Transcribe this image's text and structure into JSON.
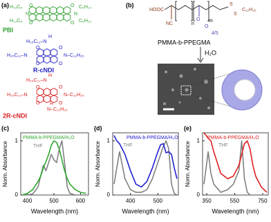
{
  "figure": {
    "a": {
      "label": "(a)",
      "pbi": {
        "name": "PBI",
        "texts": [
          "H₁₃C₆",
          "H₁₃C₆",
          "C₆H₁₃",
          "C₆H₁₃"
        ],
        "atoms": [
          "O",
          "N",
          "O",
          "O",
          "N",
          "O"
        ]
      },
      "rcndi": {
        "name": "R-cNDI",
        "texts": [
          "H",
          "H₂₅C₁₂–N",
          "H₂₅C₁₂–N",
          "N–C₁₂H₂₅"
        ],
        "atoms": [
          "O",
          "O",
          "O",
          "O"
        ]
      },
      "r2cndi": {
        "name": "2R-cNDI",
        "texts": [
          "H",
          "H₂₅C₁₂–N",
          "H₂₅C₁₂–N",
          "N–C₁₂H₂₅",
          "N–C₁₂H₂₅",
          "H"
        ],
        "atoms": [
          "O",
          "O",
          "O",
          "O"
        ]
      }
    },
    "b": {
      "label": "(b)",
      "texts": [
        "HOOC",
        "NC",
        "n",
        "O",
        "O",
        "m",
        "S",
        "S",
        "C₁₂H₂₅",
        "4/5"
      ],
      "polymer": "PMMA-b-PPEGMA",
      "solvent": "H₂O"
    }
  },
  "chart_data": [
    {
      "type": "line",
      "panel_label": "(c)",
      "xlabel": "Wavelength (nm)",
      "ylabel": "Norm. Absorbance",
      "x": [
        380,
        400,
        420,
        440,
        450,
        460,
        470,
        480,
        490,
        500,
        510,
        520,
        530,
        540,
        550,
        560,
        580,
        600,
        620
      ],
      "series": [
        {
          "name": "PMMA-b-PPEGMA/H₂O",
          "color": "#2fa82f",
          "values": [
            0,
            0.03,
            0.1,
            0.25,
            0.35,
            0.5,
            0.62,
            0.75,
            0.92,
            1.0,
            0.97,
            0.85,
            0.65,
            0.45,
            0.3,
            0.2,
            0.1,
            0.05,
            0.03
          ]
        },
        {
          "name": "THF",
          "color": "#808080",
          "values": [
            0,
            0,
            0.02,
            0.15,
            0.35,
            0.55,
            0.45,
            0.6,
            0.75,
            0.65,
            0.6,
            0.85,
            1.0,
            0.6,
            0.15,
            0.03,
            0,
            0,
            0
          ]
        }
      ],
      "xlim": [
        375,
        630
      ],
      "ylim": [
        0,
        1.15
      ],
      "xticks": [
        400,
        500,
        600
      ],
      "yticks": [
        0,
        1
      ]
    },
    {
      "type": "line",
      "panel_label": "(d)",
      "xlabel": "Wavelength (nm)",
      "ylabel": "Norm. Absorbance",
      "x": [
        340,
        350,
        360,
        370,
        380,
        400,
        420,
        440,
        460,
        480,
        500,
        510,
        520,
        530,
        540,
        550,
        560,
        570
      ],
      "series": [
        {
          "name": "PMMA-b-PPEGMA/H₂O",
          "color": "#2020d0",
          "values": [
            1.1,
            1.0,
            0.95,
            0.85,
            0.75,
            0.45,
            0.2,
            0.15,
            0.25,
            0.5,
            0.8,
            0.93,
            0.95,
            0.78,
            0.8,
            0.75,
            0.5,
            0.3
          ]
        },
        {
          "name": "THF",
          "color": "#808080",
          "values": [
            0.2,
            0.5,
            0.8,
            0.55,
            0.3,
            0.1,
            0.05,
            0.05,
            0.1,
            0.3,
            0.6,
            0.75,
            0.9,
            1.0,
            0.85,
            0.2,
            0.03,
            0
          ]
        }
      ],
      "xlim": [
        335,
        575
      ],
      "ylim": [
        0,
        1.15
      ],
      "xticks": [
        400,
        500
      ],
      "yticks": [
        0,
        1
      ]
    },
    {
      "type": "line",
      "panel_label": "(e)",
      "xlabel": "Wavelength (nm)",
      "ylabel": "Norm. Absorbance",
      "x": [
        330,
        345,
        360,
        380,
        400,
        450,
        500,
        540,
        580,
        600,
        620,
        640,
        660,
        680,
        700,
        740,
        780
      ],
      "series": [
        {
          "name": "PMMA-b-PPEGMA/H₂O",
          "color": "#e02020",
          "values": [
            1.15,
            1.1,
            1.05,
            1.0,
            0.8,
            0.4,
            0.3,
            0.35,
            0.55,
            0.75,
            0.95,
            1.0,
            0.85,
            0.55,
            0.35,
            0.15,
            0.05
          ]
        },
        {
          "name": "THF",
          "color": "#808080",
          "values": [
            0.2,
            0.5,
            0.8,
            0.4,
            0.2,
            0.05,
            0.1,
            0.2,
            0.45,
            1.0,
            0.3,
            0.05,
            0,
            0,
            0,
            0,
            0
          ]
        }
      ],
      "xlim": [
        320,
        790
      ],
      "ylim": [
        0,
        1.15
      ],
      "xticks": [
        350,
        550,
        750
      ],
      "yticks": [
        0,
        1
      ]
    }
  ]
}
